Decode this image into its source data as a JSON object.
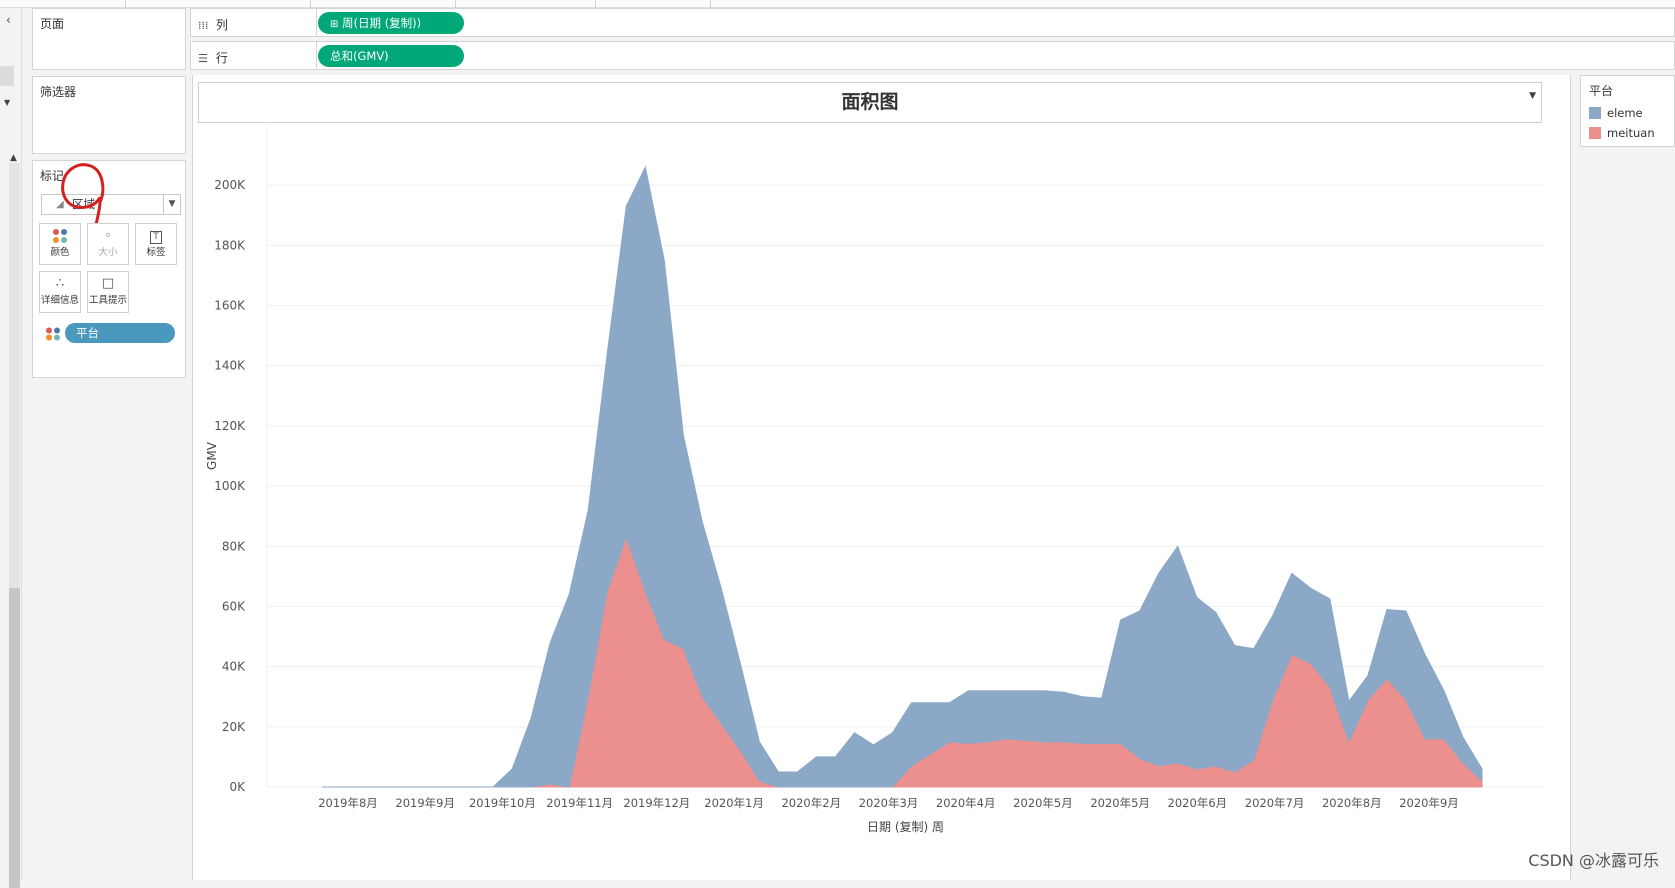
{
  "panels": {
    "pages_title": "页面",
    "filters_title": "筛选器",
    "marks_title": "标记",
    "mark_type": "区域",
    "mark_buttons": [
      {
        "label": "颜色",
        "icon": "color-dots-icon"
      },
      {
        "label": "大小",
        "icon": "size-icon"
      },
      {
        "label": "标签",
        "icon": "label-icon"
      },
      {
        "label": "详细信息",
        "icon": "detail-icon"
      },
      {
        "label": "工具提示",
        "icon": "tooltip-icon"
      }
    ],
    "color_field": "平台"
  },
  "shelves": {
    "columns_label": "列",
    "columns_pill": "周(日期 (复制))",
    "rows_label": "行",
    "rows_pill": "总和(GMV)"
  },
  "legend": {
    "title": "平台",
    "items": [
      {
        "name": "eleme",
        "color": "#8ba8c6"
      },
      {
        "name": "meituan",
        "color": "#ec8f8f"
      }
    ]
  },
  "watermark": "CSDN @冰露可乐",
  "chart_data": {
    "type": "area",
    "stacked": true,
    "title": "面积图",
    "ylabel": "GMV",
    "xlabel": "日期 (复制) 周",
    "ylim": [
      0,
      220000
    ],
    "yticks": [
      0,
      20000,
      40000,
      60000,
      80000,
      100000,
      120000,
      140000,
      160000,
      180000,
      200000
    ],
    "ytick_labels": [
      "0K",
      "20K",
      "40K",
      "60K",
      "80K",
      "100K",
      "120K",
      "140K",
      "160K",
      "180K",
      "200K"
    ],
    "xtick_labels": [
      "2019年8月",
      "2019年9月",
      "2019年10月",
      "2019年11月",
      "2019年12月",
      "2020年1月",
      "2020年2月",
      "2020年3月",
      "2020年4月",
      "2020年5月",
      "2020年5月",
      "2020年6月",
      "2020年7月",
      "2020年8月",
      "2020年9月"
    ],
    "grid": true,
    "legend_position": "right",
    "series": [
      {
        "name": "meituan",
        "color": "#ec8f8f",
        "values": [
          0,
          0,
          0,
          0,
          0,
          0,
          0,
          0,
          0,
          0,
          0,
          0,
          1000,
          0,
          30000,
          65000,
          83000,
          65000,
          49000,
          46000,
          30000,
          21000,
          12000,
          2000,
          0,
          0,
          0,
          0,
          0,
          0,
          0,
          7000,
          11000,
          15000,
          14500,
          15000,
          16000,
          15500,
          15000,
          15000,
          14500,
          14500,
          14500,
          9500,
          7000,
          8000,
          6000,
          7000,
          5000,
          9000,
          29000,
          44000,
          41000,
          33000,
          15000,
          29000,
          36000,
          29000,
          16000,
          16000,
          8000,
          2000
        ]
      },
      {
        "name": "eleme",
        "color": "#8ba8c6",
        "values": [
          0,
          0,
          0,
          0,
          0,
          0,
          0,
          0,
          0,
          0,
          6000,
          23000,
          47000,
          64000,
          62000,
          79000,
          110000,
          141000,
          126000,
          71000,
          58000,
          45000,
          29000,
          13000,
          5000,
          5000,
          10000,
          10000,
          18000,
          14000,
          18000,
          21000,
          17000,
          13000,
          17500,
          17000,
          16000,
          16500,
          17000,
          16500,
          15500,
          15000,
          41000,
          49000,
          64000,
          72000,
          57000,
          51000,
          42000,
          37000,
          28000,
          27000,
          25000,
          29500,
          13500,
          8000,
          23000,
          29500,
          28000,
          16000,
          8500,
          4000
        ]
      }
    ]
  }
}
